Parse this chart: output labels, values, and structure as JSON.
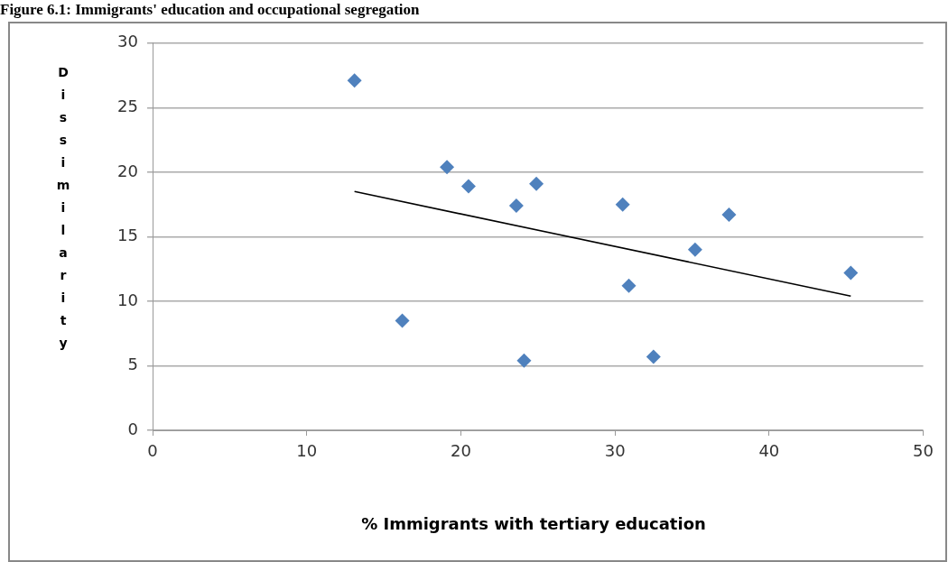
{
  "chart_data": {
    "type": "scatter",
    "title": "Figure 6.1: Immigrants' education and occupational segregation",
    "xlabel": "% Immigrants with tertiary education",
    "ylabel": "Dissimilarity",
    "marker": "diamond",
    "grid": "y",
    "xlim": [
      0,
      50
    ],
    "xticks": [
      0,
      10,
      20,
      30,
      40,
      50
    ],
    "ylim": [
      0,
      30
    ],
    "yticks": [
      0,
      5,
      10,
      15,
      20,
      25,
      30
    ],
    "series": [
      {
        "color": "#4f81bd",
        "x": [
          13.1,
          16.2,
          19.1,
          20.5,
          23.6,
          24.9,
          24.1,
          30.5,
          30.9,
          32.5,
          35.2,
          37.4,
          45.3
        ],
        "values": [
          27.1,
          8.5,
          20.4,
          18.9,
          17.4,
          19.1,
          5.4,
          17.5,
          11.2,
          5.7,
          14.0,
          16.7,
          12.2
        ]
      },
      {
        "type": "line",
        "color": "#000000",
        "marker": "none",
        "x": [
          13.1,
          45.3
        ],
        "values": [
          18.5,
          10.4
        ]
      }
    ]
  }
}
